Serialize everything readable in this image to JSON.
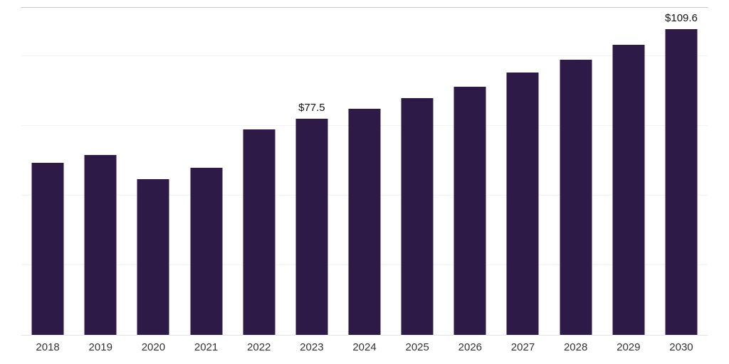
{
  "chart_data": {
    "type": "bar",
    "title": "",
    "xlabel": "",
    "ylabel": "",
    "categories": [
      "2018",
      "2019",
      "2020",
      "2021",
      "2022",
      "2023",
      "2024",
      "2025",
      "2026",
      "2027",
      "2028",
      "2029",
      "2030"
    ],
    "values": [
      61.7,
      64.5,
      55.8,
      59.9,
      73.7,
      77.5,
      81.1,
      84.9,
      89.0,
      94.1,
      98.6,
      104.0,
      109.6
    ],
    "data_labels": [
      {
        "category": "2023",
        "label": "$77.5"
      },
      {
        "category": "2030",
        "label": "$109.6"
      }
    ],
    "ylim": [
      0,
      117.25
    ],
    "gridline_values": [
      25,
      50,
      75,
      100
    ],
    "grid": true,
    "legend": "none",
    "bar_color": "#2e1a47",
    "axis_line_color": "#c9c9c9",
    "baseline_color": "#e3e3e3",
    "tick_label_color": "#333333",
    "data_label_color": "#111111"
  }
}
